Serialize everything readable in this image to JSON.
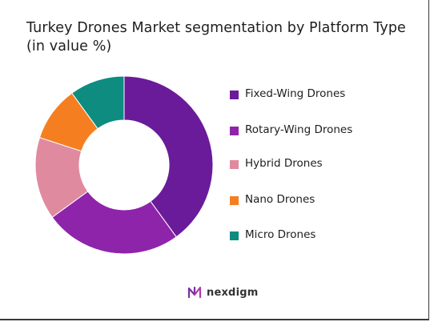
{
  "chart_data": {
    "type": "pie",
    "donut": true,
    "title": "Turkey Drones Market segmentation by Platform Type (in value %)",
    "categories": [
      "Fixed-Wing Drones",
      "Rotary-Wing Drones",
      "Hybrid Drones",
      "Nano Drones",
      "Micro Drones"
    ],
    "values": [
      40,
      25,
      15,
      10,
      10
    ],
    "colors": [
      "#6a1b9a",
      "#8e24aa",
      "#e08aa0",
      "#f57f20",
      "#0e8c80"
    ],
    "legend_position": "right"
  },
  "brand": {
    "name": "nexdigm"
  }
}
